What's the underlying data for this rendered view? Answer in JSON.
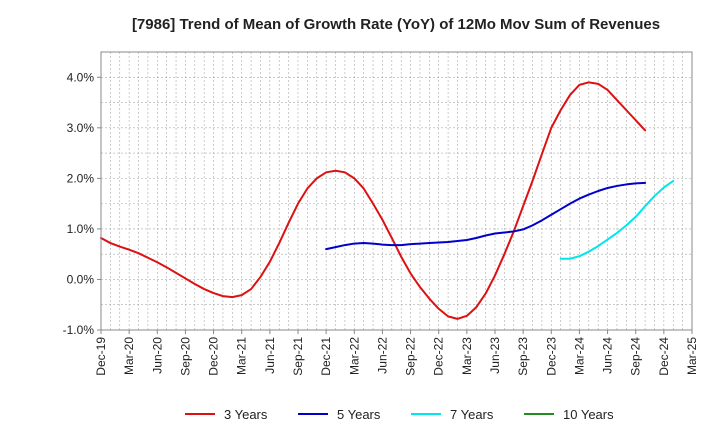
{
  "chart_data": {
    "type": "line",
    "title": "[7986]  Trend of Mean of Growth Rate (YoY) of 12Mo Mov Sum of Revenues",
    "xlabel": "",
    "ylabel": "",
    "ylim": [
      -1.0,
      4.5
    ],
    "yticks": [
      -1.0,
      0.0,
      1.0,
      2.0,
      3.0,
      4.0
    ],
    "ytick_labels": [
      "-1.0%",
      "0.0%",
      "1.0%",
      "2.0%",
      "3.0%",
      "4.0%"
    ],
    "x_start_label": "Dec-19",
    "x_months": 63,
    "x_tick_labels": [
      "Dec-19",
      "Mar-20",
      "Jun-20",
      "Sep-20",
      "Dec-20",
      "Mar-21",
      "Jun-21",
      "Sep-21",
      "Dec-21",
      "Mar-22",
      "Jun-22",
      "Sep-22",
      "Dec-22",
      "Mar-23",
      "Jun-23",
      "Sep-23",
      "Dec-23",
      "Mar-24",
      "Jun-24",
      "Sep-24",
      "Dec-24",
      "Mar-25"
    ],
    "grid": true,
    "legend_position": "bottom",
    "series": [
      {
        "name": "3 Years",
        "color": "#dd1111",
        "start_index": 0,
        "values": [
          0.82,
          0.72,
          0.65,
          0.59,
          0.52,
          0.43,
          0.34,
          0.24,
          0.13,
          0.02,
          -0.09,
          -0.19,
          -0.27,
          -0.33,
          -0.35,
          -0.31,
          -0.19,
          0.05,
          0.35,
          0.72,
          1.12,
          1.5,
          1.8,
          2.0,
          2.12,
          2.15,
          2.12,
          2.0,
          1.8,
          1.5,
          1.18,
          0.82,
          0.45,
          0.12,
          -0.15,
          -0.38,
          -0.58,
          -0.73,
          -0.78,
          -0.72,
          -0.55,
          -0.28,
          0.08,
          0.5,
          0.95,
          1.45,
          1.95,
          2.48,
          3.0,
          3.35,
          3.65,
          3.85,
          3.9,
          3.87,
          3.75,
          3.55,
          3.35,
          3.15,
          2.95
        ]
      },
      {
        "name": "5 Years",
        "color": "#0000cc",
        "start_index": 24,
        "values": [
          0.6,
          0.64,
          0.68,
          0.71,
          0.72,
          0.71,
          0.69,
          0.68,
          0.68,
          0.7,
          0.71,
          0.72,
          0.73,
          0.74,
          0.76,
          0.78,
          0.82,
          0.87,
          0.91,
          0.93,
          0.95,
          0.99,
          1.07,
          1.17,
          1.28,
          1.39,
          1.5,
          1.6,
          1.68,
          1.75,
          1.81,
          1.85,
          1.88,
          1.9,
          1.91
        ]
      },
      {
        "name": "7 Years",
        "color": "#00e5ee",
        "start_index": 49,
        "values": [
          0.41,
          0.41,
          0.46,
          0.55,
          0.66,
          0.79,
          0.92,
          1.07,
          1.24,
          1.45,
          1.65,
          1.82,
          1.95
        ]
      },
      {
        "name": "10 Years",
        "color": "#228b22",
        "start_index": 0,
        "values": []
      }
    ]
  }
}
